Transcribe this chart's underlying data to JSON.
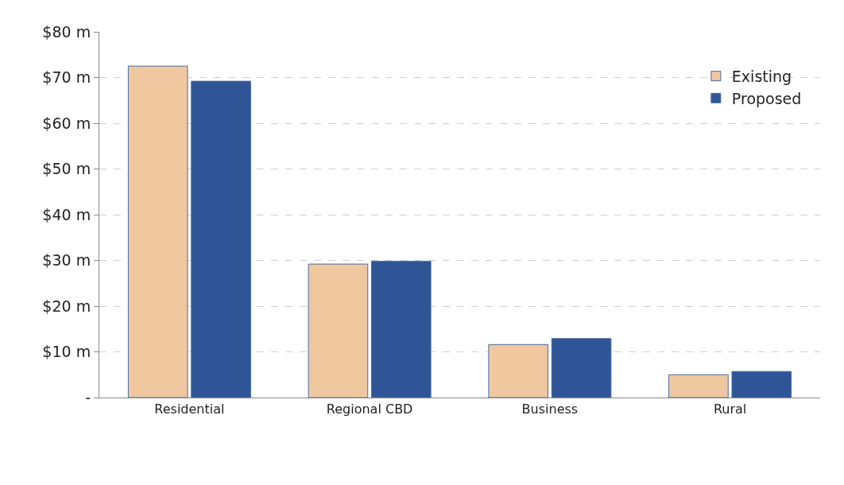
{
  "chart_data": {
    "type": "bar",
    "categories": [
      "Residential",
      "Regional CBD",
      "Business",
      "Rural"
    ],
    "series": [
      {
        "name": "Existing",
        "color": "#f0c8a0",
        "values": [
          72.5,
          29.2,
          11.6,
          5.0
        ]
      },
      {
        "name": "Proposed",
        "color": "#2f5597",
        "values": [
          69.2,
          29.8,
          12.9,
          5.7
        ]
      }
    ],
    "ylim": [
      0,
      80
    ],
    "yticks": [
      {
        "value": 0,
        "label": "-"
      },
      {
        "value": 10,
        "label": "$10 m"
      },
      {
        "value": 20,
        "label": "$20 m"
      },
      {
        "value": 30,
        "label": "$30 m"
      },
      {
        "value": 40,
        "label": "$40 m"
      },
      {
        "value": 50,
        "label": "$50 m"
      },
      {
        "value": 60,
        "label": "$60 m"
      },
      {
        "value": 70,
        "label": "$70 m"
      },
      {
        "value": 80,
        "label": "$80 m"
      }
    ],
    "grid": "y",
    "legend": "top right"
  }
}
